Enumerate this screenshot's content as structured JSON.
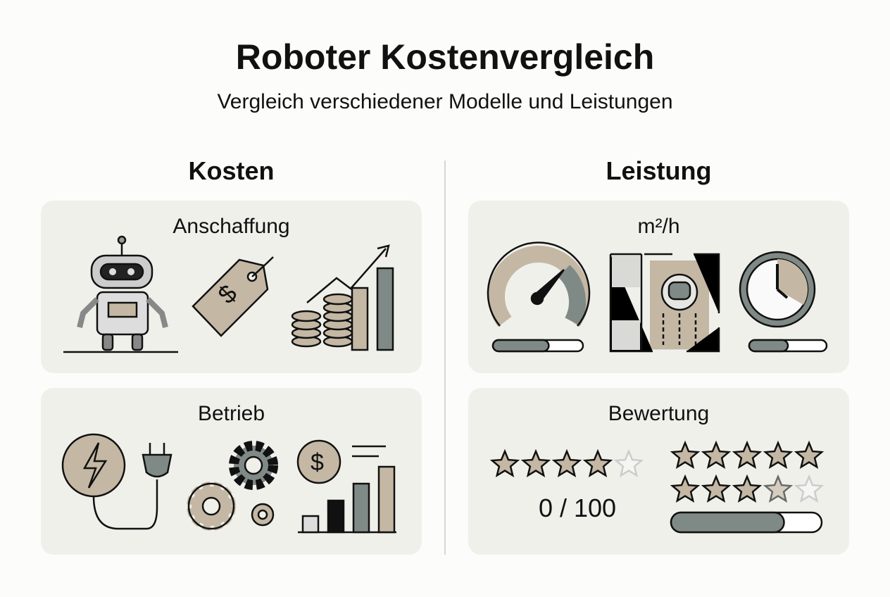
{
  "header": {
    "title": "Roboter Kostenvergleich",
    "subtitle": "Vergleich verschiedener Modelle und Leistungen"
  },
  "columns": {
    "costs": {
      "heading": "Kosten",
      "cards": [
        {
          "title": "Anschaffung",
          "icons": [
            "robot-icon",
            "price-tag-icon",
            "coins-growth-chart-icon"
          ]
        },
        {
          "title": "Betrieb",
          "icons": [
            "power-plug-icon",
            "gears-icon",
            "dollar-bar-chart-icon"
          ]
        }
      ]
    },
    "performance": {
      "heading": "Leistung",
      "cards": [
        {
          "title": "m²/h",
          "icons": [
            "speedometer-icon",
            "floor-plan-robot-vacuum-icon",
            "clock-icon"
          ],
          "speed_bar_percent": 62,
          "clock_bar_percent": 50
        },
        {
          "title": "Bewertung",
          "rating_left": {
            "stars_filled": 4,
            "stars_total": 5
          },
          "score_text": "0 / 100",
          "rating_right": {
            "stars_filled": 8.5,
            "stars_total": 10
          },
          "rating_bar_percent": 75
        }
      ]
    }
  },
  "colors": {
    "card": "#f0f0eb",
    "tan": "#c4b8a4",
    "slate": "#7f8a87",
    "outline": "#111111"
  }
}
